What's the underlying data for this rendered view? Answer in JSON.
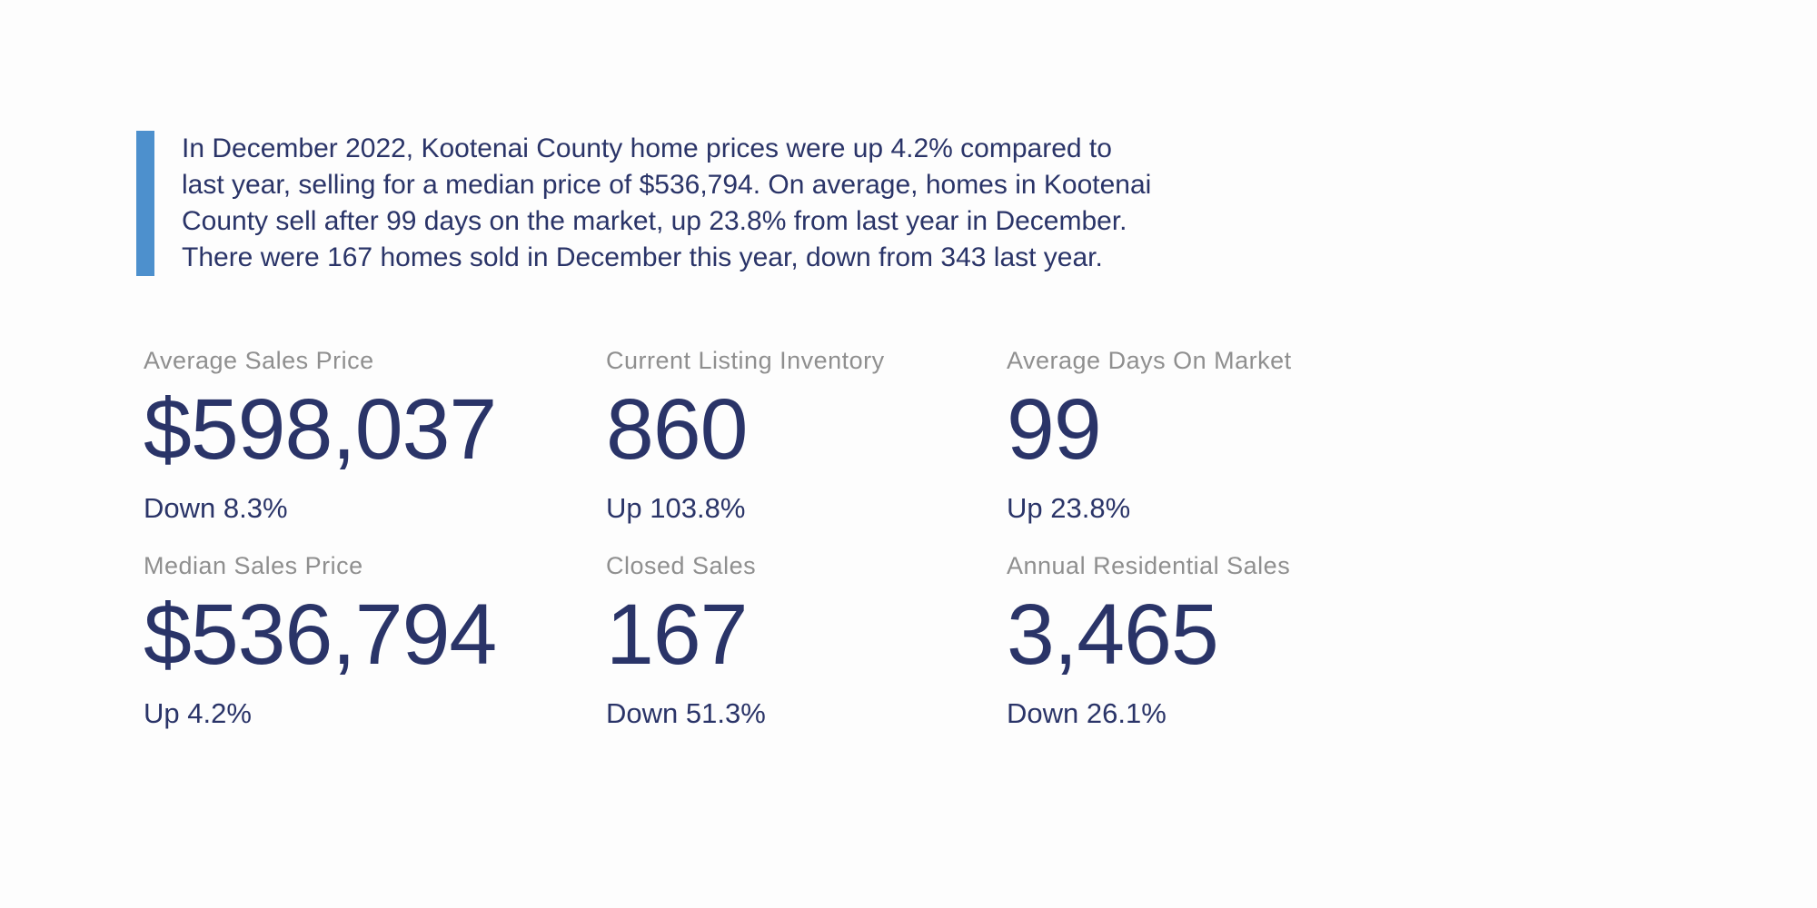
{
  "theme": {
    "accent_color": "#4d90cd",
    "navy_text_color": "#2a3468",
    "label_gray_color": "#8f8f8f",
    "background_color": "#fdfdfd"
  },
  "summary": {
    "full_text": "In December 2022, Kootenai County home prices were up 4.2% compared to last year, selling for a median price of $536,794. On average, homes in Kootenai County sell after 99 days on the market, up 23.8% from last year in December. There were 167 homes sold in December this year, down from 343 last year.",
    "lines": [
      "In December 2022, Kootenai County home prices were up 4.2% compared to",
      "last year, selling for a median price of $536,794. On average, homes in Kootenai",
      "County sell after 99 days on the market, up 23.8% from last year in December.",
      "There were 167 homes sold in December this year, down from 343 last year."
    ]
  },
  "stats": [
    {
      "label": "Average Sales Price",
      "value": "$598,037",
      "change": "Down 8.3%"
    },
    {
      "label": "Current Listing Inventory",
      "value": "860",
      "change": "Up 103.8%"
    },
    {
      "label": "Average Days On Market",
      "value": "99",
      "change": "Up 23.8%"
    },
    {
      "label": "Median Sales Price",
      "value": "$536,794",
      "change": "Up 4.2%"
    },
    {
      "label": "Closed Sales",
      "value": "167",
      "change": "Down 51.3%"
    },
    {
      "label": "Annual Residential Sales",
      "value": "3,465",
      "change": "Down 26.1%"
    }
  ]
}
